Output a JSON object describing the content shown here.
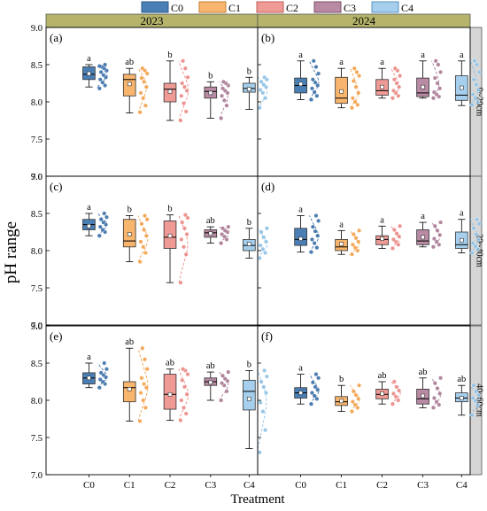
{
  "chart_data": {
    "type": "boxplot",
    "xlabel": "Treatment",
    "ylabel": "pH range",
    "categories": [
      "C0",
      "C1",
      "C2",
      "C3",
      "C4"
    ],
    "ylim": [
      7.0,
      9.0
    ],
    "yticks": [
      7.0,
      7.5,
      8.0,
      8.5,
      9.0
    ],
    "grid": false,
    "legend": {
      "placement": "top-center",
      "entries": [
        "C0",
        "C1",
        "C2",
        "C3",
        "C4"
      ]
    },
    "colors": {
      "C0": {
        "fill": "#4a7fb5",
        "edge": "#2c5a8a",
        "point": "#3b6fa8"
      },
      "C1": {
        "fill": "#f8b56d",
        "edge": "#c27d30",
        "point": "#f3a04a"
      },
      "C2": {
        "fill": "#f09a96",
        "edge": "#c0605a",
        "point": "#eb8a85"
      },
      "C3": {
        "fill": "#b88aa3",
        "edge": "#7d4f6a",
        "point": "#a97a94"
      },
      "C4": {
        "fill": "#a5cfec",
        "edge": "#5b93c0",
        "point": "#8ec2e6"
      }
    },
    "years": [
      "2023",
      "2024"
    ],
    "depths": [
      "0~20cm",
      "20~40cm",
      "40~60cm"
    ],
    "panels": [
      {
        "label": "(a)",
        "year": "2023",
        "depth": "0~20cm",
        "boxes": [
          {
            "category": "C0",
            "q1": 8.3,
            "median": 8.37,
            "q3": 8.47,
            "mean": 8.38,
            "whisker_low": 8.2,
            "whisker_high": 8.5,
            "letter": "a",
            "points": [
              8.18,
              8.22,
              8.26,
              8.3,
              8.33,
              8.36,
              8.4,
              8.42,
              8.45,
              8.47,
              8.48,
              8.5
            ]
          },
          {
            "category": "C1",
            "q1": 8.08,
            "median": 8.3,
            "q3": 8.37,
            "mean": 8.24,
            "whisker_low": 7.85,
            "whisker_high": 8.45,
            "letter": "ab",
            "points": [
              7.86,
              7.95,
              8.05,
              8.12,
              8.2,
              8.27,
              8.32,
              8.38,
              8.42,
              8.45
            ]
          },
          {
            "category": "C2",
            "q1": 8.0,
            "median": 8.17,
            "q3": 8.25,
            "mean": 8.14,
            "whisker_low": 7.75,
            "whisker_high": 8.55,
            "letter": "b",
            "points": [
              7.75,
              7.87,
              7.98,
              8.08,
              8.15,
              8.2,
              8.25,
              8.33,
              8.45,
              8.55
            ]
          },
          {
            "category": "C3",
            "q1": 8.05,
            "median": 8.14,
            "q3": 8.2,
            "mean": 8.12,
            "whisker_low": 7.78,
            "whisker_high": 8.27,
            "letter": "b",
            "points": [
              7.78,
              7.95,
              8.02,
              8.08,
              8.12,
              8.15,
              8.18,
              8.22,
              8.25,
              8.27
            ]
          },
          {
            "category": "C4",
            "q1": 8.13,
            "median": 8.18,
            "q3": 8.25,
            "mean": 8.17,
            "whisker_low": 7.9,
            "whisker_high": 8.33,
            "letter": "b",
            "points": [
              7.92,
              8.05,
              8.12,
              8.16,
              8.2,
              8.23,
              8.27,
              8.3,
              8.33
            ]
          }
        ]
      },
      {
        "label": "(b)",
        "year": "2024",
        "depth": "0~20cm",
        "boxes": [
          {
            "category": "C0",
            "q1": 8.12,
            "median": 8.22,
            "q3": 8.32,
            "mean": 8.24,
            "whisker_low": 8.03,
            "whisker_high": 8.55,
            "letter": "a",
            "points": [
              8.03,
              8.08,
              8.13,
              8.18,
              8.22,
              8.26,
              8.3,
              8.38,
              8.47,
              8.55
            ]
          },
          {
            "category": "C1",
            "q1": 7.98,
            "median": 8.05,
            "q3": 8.33,
            "mean": 8.14,
            "whisker_low": 7.92,
            "whisker_high": 8.45,
            "letter": "a",
            "points": [
              7.92,
              7.96,
              8.0,
              8.05,
              8.12,
              8.2,
              8.28,
              8.35,
              8.4,
              8.45
            ]
          },
          {
            "category": "C2",
            "q1": 8.09,
            "median": 8.15,
            "q3": 8.3,
            "mean": 8.2,
            "whisker_low": 8.05,
            "whisker_high": 8.45,
            "letter": "a",
            "points": [
              8.05,
              8.08,
              8.12,
              8.15,
              8.2,
              8.25,
              8.3,
              8.35,
              8.42,
              8.45
            ]
          },
          {
            "category": "C3",
            "q1": 8.07,
            "median": 8.12,
            "q3": 8.32,
            "mean": 8.2,
            "whisker_low": 8.05,
            "whisker_high": 8.55,
            "letter": "a",
            "points": [
              8.05,
              8.07,
              8.1,
              8.13,
              8.18,
              8.25,
              8.32,
              8.4,
              8.5,
              8.55
            ]
          },
          {
            "category": "C4",
            "q1": 8.02,
            "median": 8.09,
            "q3": 8.35,
            "mean": 8.19,
            "whisker_low": 7.95,
            "whisker_high": 8.55,
            "letter": "a",
            "points": [
              7.96,
              8.0,
              8.05,
              8.1,
              8.16,
              8.23,
              8.3,
              8.4,
              8.5,
              8.55
            ]
          }
        ]
      },
      {
        "label": "(c)",
        "year": "2023",
        "depth": "20~40cm",
        "boxes": [
          {
            "category": "C0",
            "q1": 8.28,
            "median": 8.35,
            "q3": 8.42,
            "mean": 8.33,
            "whisker_low": 8.2,
            "whisker_high": 8.5,
            "letter": "a",
            "points": [
              8.2,
              8.25,
              8.28,
              8.32,
              8.35,
              8.38,
              8.42,
              8.45,
              8.5
            ]
          },
          {
            "category": "C1",
            "q1": 8.05,
            "median": 8.13,
            "q3": 8.42,
            "mean": 8.22,
            "whisker_low": 7.85,
            "whisker_high": 8.47,
            "letter": "b",
            "points": [
              7.85,
              7.97,
              8.05,
              8.12,
              8.2,
              8.28,
              8.36,
              8.42,
              8.47
            ]
          },
          {
            "category": "C2",
            "q1": 8.03,
            "median": 8.18,
            "q3": 8.4,
            "mean": 8.2,
            "whisker_low": 7.57,
            "whisker_high": 8.48,
            "letter": "b",
            "points": [
              7.57,
              7.95,
              8.05,
              8.15,
              8.22,
              8.3,
              8.38,
              8.44,
              8.48
            ]
          },
          {
            "category": "C3",
            "q1": 8.18,
            "median": 8.24,
            "q3": 8.28,
            "mean": 8.23,
            "whisker_low": 8.1,
            "whisker_high": 8.32,
            "letter": "ab",
            "points": [
              8.1,
              8.15,
              8.19,
              8.22,
              8.25,
              8.27,
              8.3,
              8.32
            ]
          },
          {
            "category": "C4",
            "q1": 8.0,
            "median": 8.07,
            "q3": 8.15,
            "mean": 8.09,
            "whisker_low": 7.9,
            "whisker_high": 8.3,
            "letter": "b",
            "points": [
              7.9,
              7.97,
              8.02,
              8.07,
              8.12,
              8.18,
              8.25,
              8.3
            ]
          }
        ]
      },
      {
        "label": "(d)",
        "year": "2024",
        "depth": "20~40cm",
        "boxes": [
          {
            "category": "C0",
            "q1": 8.07,
            "median": 8.15,
            "q3": 8.3,
            "mean": 8.16,
            "whisker_low": 7.98,
            "whisker_high": 8.47,
            "letter": "a",
            "points": [
              7.98,
              8.04,
              8.1,
              8.15,
              8.2,
              8.26,
              8.32,
              8.4,
              8.47
            ]
          },
          {
            "category": "C1",
            "q1": 8.0,
            "median": 8.05,
            "q3": 8.15,
            "mean": 8.09,
            "whisker_low": 7.95,
            "whisker_high": 8.27,
            "letter": "a",
            "points": [
              7.95,
              8.0,
              8.04,
              8.08,
              8.12,
              8.17,
              8.22,
              8.27
            ]
          },
          {
            "category": "C2",
            "q1": 8.08,
            "median": 8.15,
            "q3": 8.2,
            "mean": 8.16,
            "whisker_low": 8.03,
            "whisker_high": 8.33,
            "letter": "a",
            "points": [
              8.03,
              8.08,
              8.12,
              8.15,
              8.19,
              8.23,
              8.28,
              8.33
            ]
          },
          {
            "category": "C3",
            "q1": 8.08,
            "median": 8.13,
            "q3": 8.28,
            "mean": 8.18,
            "whisker_low": 8.05,
            "whisker_high": 8.38,
            "letter": "a",
            "points": [
              8.05,
              8.08,
              8.12,
              8.16,
              8.21,
              8.27,
              8.33,
              8.38
            ]
          },
          {
            "category": "C4",
            "q1": 8.03,
            "median": 8.08,
            "q3": 8.25,
            "mean": 8.14,
            "whisker_low": 7.97,
            "whisker_high": 8.42,
            "letter": "a",
            "points": [
              7.97,
              8.02,
              8.06,
              8.1,
              8.15,
              8.22,
              8.3,
              8.36,
              8.42
            ]
          }
        ]
      },
      {
        "label": "(e)",
        "year": "2023",
        "depth": "40~60cm",
        "boxes": [
          {
            "category": "C0",
            "q1": 8.22,
            "median": 8.3,
            "q3": 8.37,
            "mean": 8.3,
            "whisker_low": 8.17,
            "whisker_high": 8.5,
            "letter": "a",
            "points": [
              8.17,
              8.22,
              8.25,
              8.28,
              8.31,
              8.34,
              8.37,
              8.42,
              8.5
            ]
          },
          {
            "category": "C1",
            "q1": 7.98,
            "median": 8.17,
            "q3": 8.25,
            "mean": 8.15,
            "whisker_low": 7.72,
            "whisker_high": 8.7,
            "letter": "ab",
            "points": [
              7.72,
              7.9,
              8.0,
              8.1,
              8.17,
              8.22,
              8.3,
              8.42,
              8.55,
              8.7
            ]
          },
          {
            "category": "C2",
            "q1": 7.88,
            "median": 8.08,
            "q3": 8.35,
            "mean": 8.08,
            "whisker_low": 7.73,
            "whisker_high": 8.42,
            "letter": "ab",
            "points": [
              7.73,
              7.82,
              7.9,
              8.0,
              8.08,
              8.18,
              8.27,
              8.35,
              8.4,
              8.42
            ]
          },
          {
            "category": "C3",
            "q1": 8.2,
            "median": 8.25,
            "q3": 8.3,
            "mean": 8.24,
            "whisker_low": 8.0,
            "whisker_high": 8.38,
            "letter": "ab",
            "points": [
              8.0,
              8.12,
              8.2,
              8.23,
              8.26,
              8.29,
              8.33,
              8.38
            ]
          },
          {
            "category": "C4",
            "q1": 7.87,
            "median": 8.12,
            "q3": 8.27,
            "mean": 8.02,
            "whisker_low": 7.35,
            "whisker_high": 8.4,
            "letter": "b",
            "points": [
              7.3,
              7.6,
              7.85,
              7.97,
              8.1,
              8.18,
              8.25,
              8.32,
              8.4
            ]
          }
        ]
      },
      {
        "label": "(f)",
        "year": "2024",
        "depth": "40~60cm",
        "boxes": [
          {
            "category": "C0",
            "q1": 8.03,
            "median": 8.1,
            "q3": 8.17,
            "mean": 8.1,
            "whisker_low": 7.95,
            "whisker_high": 8.35,
            "letter": "a",
            "points": [
              7.95,
              8.02,
              8.06,
              8.1,
              8.14,
              8.18,
              8.24,
              8.3,
              8.35
            ]
          },
          {
            "category": "C1",
            "q1": 7.93,
            "median": 7.98,
            "q3": 8.05,
            "mean": 7.99,
            "whisker_low": 7.85,
            "whisker_high": 8.2,
            "letter": "b",
            "points": [
              7.85,
              7.9,
              7.94,
              7.98,
              8.02,
              8.07,
              8.12,
              8.2
            ]
          },
          {
            "category": "C2",
            "q1": 8.02,
            "median": 8.08,
            "q3": 8.15,
            "mean": 8.09,
            "whisker_low": 7.95,
            "whisker_high": 8.25,
            "letter": "ab",
            "points": [
              7.95,
              8.0,
              8.05,
              8.09,
              8.13,
              8.18,
              8.25
            ]
          },
          {
            "category": "C3",
            "q1": 7.95,
            "median": 8.02,
            "q3": 8.15,
            "mean": 8.06,
            "whisker_low": 7.9,
            "whisker_high": 8.3,
            "letter": "ab",
            "points": [
              7.9,
              7.94,
              7.98,
              8.03,
              8.09,
              8.16,
              8.23,
              8.3
            ]
          },
          {
            "category": "C4",
            "q1": 7.98,
            "median": 8.03,
            "q3": 8.1,
            "mean": 8.03,
            "whisker_low": 7.8,
            "whisker_high": 8.2,
            "letter": "ab",
            "points": [
              7.8,
              7.93,
              7.99,
              8.03,
              8.07,
              8.12,
              8.2
            ]
          }
        ]
      }
    ]
  }
}
